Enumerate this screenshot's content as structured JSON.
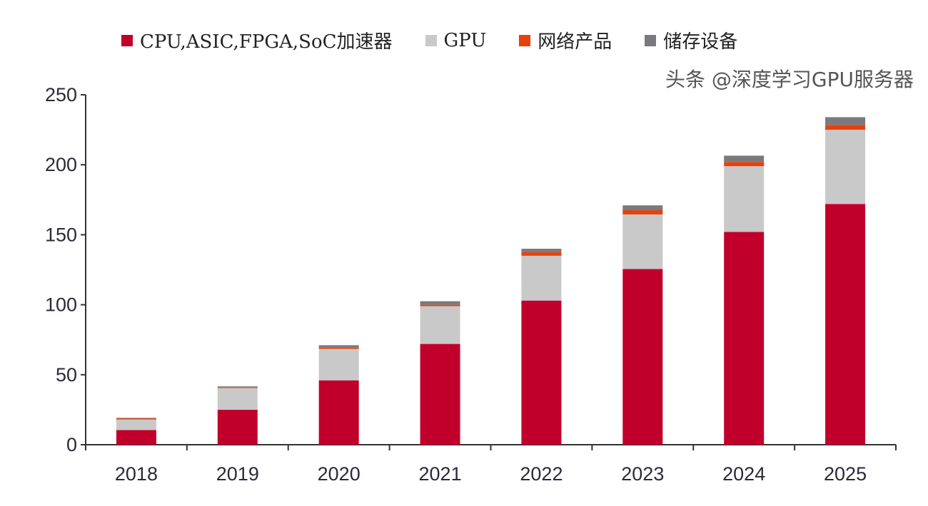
{
  "chart_data": {
    "type": "bar",
    "stacked": true,
    "categories": [
      "2018",
      "2019",
      "2020",
      "2021",
      "2022",
      "2023",
      "2024",
      "2025"
    ],
    "series": [
      {
        "name": "CPU,ASIC,FPGA,SoC加速器",
        "color": "#c0002a",
        "values": [
          10.5,
          25,
          46,
          72,
          103,
          125.5,
          152,
          172
        ]
      },
      {
        "name": "GPU",
        "color": "#c9c9c9",
        "values": [
          7.5,
          15.5,
          22.5,
          27,
          32,
          39,
          47,
          53
        ]
      },
      {
        "name": "网络产品",
        "color": "#e8400c",
        "values": [
          0.8,
          0.4,
          0.8,
          1,
          2.5,
          3,
          3,
          3.5
        ]
      },
      {
        "name": "储存设备",
        "color": "#7a7a7e",
        "values": [
          0.4,
          0.8,
          1.8,
          2.5,
          2.5,
          3.5,
          4.5,
          5.5
        ]
      }
    ],
    "yticks": [
      "0",
      "50",
      "100",
      "150",
      "200",
      "250"
    ],
    "ylim": [
      0,
      250
    ],
    "grid": false,
    "legend_position": "top",
    "xlabel": "",
    "ylabel": ""
  },
  "watermark": "头条 @深度学习GPU服务器"
}
